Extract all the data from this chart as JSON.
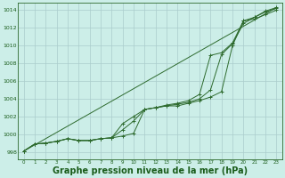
{
  "background_color": "#cceee8",
  "plot_bg_color": "#cceee8",
  "grid_color": "#aacccc",
  "line_color": "#2d6a2d",
  "marker_color": "#2d6a2d",
  "xlabel": "Graphe pression niveau de la mer (hPa)",
  "xlabel_fontsize": 7.0,
  "ylabel_ticks": [
    998,
    1000,
    1002,
    1004,
    1006,
    1008,
    1010,
    1012,
    1014
  ],
  "xlim": [
    -0.5,
    23.5
  ],
  "ylim": [
    997.2,
    1014.8
  ],
  "series_bottom": {
    "x": [
      0,
      1,
      2,
      3,
      4,
      5,
      6,
      7,
      8,
      9,
      10,
      11,
      12,
      13,
      14,
      15,
      16,
      17,
      18,
      19,
      20,
      21,
      22,
      23
    ],
    "y": [
      998.1,
      998.9,
      999.0,
      999.2,
      999.5,
      999.3,
      999.3,
      999.5,
      999.6,
      999.8,
      1000.1,
      1002.8,
      1003.0,
      1003.2,
      1003.2,
      1003.5,
      1003.8,
      1004.2,
      1004.8,
      1010.0,
      1012.8,
      1013.0,
      1013.5,
      1014.0
    ]
  },
  "series_mid1": {
    "x": [
      0,
      1,
      2,
      3,
      4,
      5,
      6,
      7,
      8,
      9,
      10,
      11,
      12,
      13,
      14,
      15,
      16,
      17,
      18,
      19,
      20,
      21,
      22,
      23
    ],
    "y": [
      998.1,
      998.9,
      999.0,
      999.2,
      999.5,
      999.3,
      999.3,
      999.5,
      999.6,
      1000.5,
      1001.5,
      1002.8,
      1003.0,
      1003.2,
      1003.4,
      1003.6,
      1004.0,
      1005.0,
      1009.0,
      1010.2,
      1012.5,
      1013.2,
      1013.8,
      1014.2
    ]
  },
  "series_mid2": {
    "x": [
      0,
      1,
      2,
      3,
      4,
      5,
      6,
      7,
      8,
      9,
      10,
      11,
      12,
      13,
      14,
      15,
      16,
      17,
      18,
      19,
      20,
      21,
      22,
      23
    ],
    "y": [
      998.1,
      998.9,
      999.0,
      999.2,
      999.5,
      999.3,
      999.3,
      999.5,
      999.6,
      1001.2,
      1002.0,
      1002.8,
      1003.0,
      1003.3,
      1003.5,
      1003.8,
      1004.5,
      1008.9,
      1009.2,
      1010.3,
      1012.8,
      1013.2,
      1013.9,
      1014.3
    ]
  },
  "series_straight": {
    "x": [
      0,
      23
    ],
    "y": [
      998.1,
      1014.3
    ]
  }
}
